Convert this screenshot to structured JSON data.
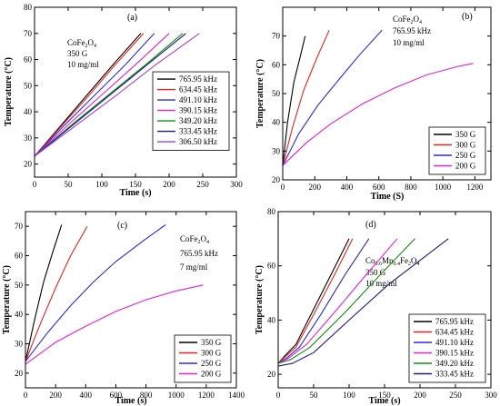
{
  "chart_data": [
    {
      "type": "line",
      "panel_label": "(a)",
      "annotations": [
        "CoFe₂O₄",
        "350 G",
        "10 mg/ml"
      ],
      "xlabel": "Time (s)",
      "ylabel": "Temperature (°C)",
      "xlim": [
        0,
        300
      ],
      "ylim": [
        15,
        80
      ],
      "xticks": [
        0,
        50,
        100,
        150,
        200,
        250,
        300
      ],
      "yticks": [
        20,
        30,
        40,
        50,
        60,
        70,
        80
      ],
      "grid": false,
      "legend_position": "center-right",
      "series": [
        {
          "name": "765.95 kHz",
          "color": "#000000",
          "points": [
            [
              0,
              23
            ],
            [
              40,
              35
            ],
            [
              80,
              47
            ],
            [
              120,
              59
            ],
            [
              158,
              70
            ]
          ]
        },
        {
          "name": "634.45 kHz",
          "color": "#e8241f",
          "points": [
            [
              0,
              23
            ],
            [
              40,
              34.5
            ],
            [
              80,
              46
            ],
            [
              120,
              58
            ],
            [
              162,
              70
            ]
          ]
        },
        {
          "name": "491.10 kHz",
          "color": "#2b2bd9",
          "points": [
            [
              0,
              23
            ],
            [
              45,
              35
            ],
            [
              90,
              46.5
            ],
            [
              135,
              58
            ],
            [
              178,
              70
            ]
          ]
        },
        {
          "name": "390.15 kHz",
          "color": "#e820d8",
          "points": [
            [
              0,
              23
            ],
            [
              50,
              35
            ],
            [
              100,
              46.5
            ],
            [
              150,
              58
            ],
            [
              200,
              70
            ]
          ]
        },
        {
          "name": "349.20 kHz",
          "color": "#138c13",
          "points": [
            [
              0,
              23
            ],
            [
              55,
              35
            ],
            [
              110,
              46.5
            ],
            [
              165,
              58
            ],
            [
              220,
              70
            ]
          ]
        },
        {
          "name": "333.45 kHz",
          "color": "#1c1c7a",
          "points": [
            [
              0,
              23
            ],
            [
              55,
              34.5
            ],
            [
              110,
              46
            ],
            [
              165,
              57.5
            ],
            [
              225,
              70
            ]
          ]
        },
        {
          "name": "306.50 kHz",
          "color": "#a040e0",
          "points": [
            [
              0,
              23
            ],
            [
              60,
              34.5
            ],
            [
              120,
              46
            ],
            [
              180,
              58
            ],
            [
              245,
              70
            ]
          ]
        }
      ]
    },
    {
      "type": "line",
      "panel_label": "(b)",
      "annotations": [
        "CoFe₂O₄",
        "765.95 kHz",
        "10 mg/ml"
      ],
      "xlabel": "Time (S)",
      "ylabel": "Temperature (°C)",
      "xlim": [
        0,
        1300
      ],
      "ylim": [
        20,
        80
      ],
      "xticks": [
        0,
        200,
        400,
        600,
        800,
        1000,
        1200
      ],
      "yticks": [
        20,
        30,
        40,
        50,
        60,
        70
      ],
      "grid": false,
      "legend_position": "bottom-right",
      "series": [
        {
          "name": "350 G",
          "color": "#000000",
          "points": [
            [
              0,
              25
            ],
            [
              30,
              40
            ],
            [
              70,
              54
            ],
            [
              110,
              63
            ],
            [
              140,
              70
            ]
          ]
        },
        {
          "name": "300 G",
          "color": "#e8241f",
          "points": [
            [
              0,
              25
            ],
            [
              60,
              38
            ],
            [
              130,
              51
            ],
            [
              210,
              62
            ],
            [
              290,
              72
            ]
          ]
        },
        {
          "name": "250 G",
          "color": "#2b2bd9",
          "points": [
            [
              0,
              25
            ],
            [
              100,
              36
            ],
            [
              220,
              46
            ],
            [
              360,
              55.5
            ],
            [
              480,
              63.5
            ],
            [
              620,
              72
            ]
          ]
        },
        {
          "name": "200 G",
          "color": "#e820d8",
          "points": [
            [
              0,
              25
            ],
            [
              150,
              33
            ],
            [
              300,
              39.5
            ],
            [
              500,
              46.5
            ],
            [
              700,
              52
            ],
            [
              900,
              56.5
            ],
            [
              1100,
              59.5
            ],
            [
              1190,
              60.5
            ]
          ]
        }
      ]
    },
    {
      "type": "line",
      "panel_label": "(c)",
      "annotations": [
        "CoFe₂O₄",
        "765.95 kHz",
        "7 mg/ml"
      ],
      "xlabel": "Time (s)",
      "ylabel": "Temperature (°C)",
      "xlim": [
        0,
        1400
      ],
      "ylim": [
        15,
        75
      ],
      "xticks": [
        0,
        200,
        400,
        600,
        800,
        1000,
        1200,
        1400
      ],
      "yticks": [
        20,
        30,
        40,
        50,
        60,
        70
      ],
      "grid": false,
      "legend_position": "bottom-right",
      "series": [
        {
          "name": "350 G",
          "color": "#000000",
          "points": [
            [
              0,
              24
            ],
            [
              60,
              38
            ],
            [
              120,
              51
            ],
            [
              180,
              61
            ],
            [
              240,
              70.5
            ]
          ]
        },
        {
          "name": "300 G",
          "color": "#e8241f",
          "points": [
            [
              0,
              24
            ],
            [
              100,
              37
            ],
            [
              200,
              49
            ],
            [
              300,
              60
            ],
            [
              410,
              70
            ]
          ]
        },
        {
          "name": "250 G",
          "color": "#2b2bd9",
          "points": [
            [
              0,
              24
            ],
            [
              150,
              34
            ],
            [
              300,
              43
            ],
            [
              450,
              51
            ],
            [
              600,
              58
            ],
            [
              780,
              65
            ],
            [
              930,
              70.5
            ]
          ]
        },
        {
          "name": "200 G",
          "color": "#e820d8",
          "points": [
            [
              0,
              23
            ],
            [
              200,
              30.5
            ],
            [
              400,
              36
            ],
            [
              600,
              41
            ],
            [
              800,
              45
            ],
            [
              1000,
              48
            ],
            [
              1180,
              50
            ]
          ]
        }
      ]
    },
    {
      "type": "line",
      "panel_label": "(d)",
      "annotations": [
        "Co₀.₆Mn₀.₄Fe₂O₄",
        "350 G",
        "10 mg/ml"
      ],
      "xlabel": "Time (s)",
      "ylabel": "Temperature (°C)",
      "xlim": [
        0,
        300
      ],
      "ylim": [
        15,
        80
      ],
      "xticks": [
        0,
        50,
        100,
        150,
        200,
        250,
        300
      ],
      "yticks": [
        20,
        40,
        60,
        80
      ],
      "grid": false,
      "legend_position": "bottom-right",
      "series": [
        {
          "name": "765.95 kHz",
          "color": "#000000",
          "points": [
            [
              0,
              24
            ],
            [
              10,
              27
            ],
            [
              25,
              31
            ],
            [
              50,
              44
            ],
            [
              75,
              57
            ],
            [
              100,
              70
            ]
          ]
        },
        {
          "name": "634.45 kHz",
          "color": "#e8241f",
          "points": [
            [
              0,
              24
            ],
            [
              10,
              26.5
            ],
            [
              25,
              30
            ],
            [
              50,
              42
            ],
            [
              80,
              57
            ],
            [
              105,
              70
            ]
          ]
        },
        {
          "name": "491.10 kHz",
          "color": "#2b2bd9",
          "points": [
            [
              0,
              24
            ],
            [
              12,
              26
            ],
            [
              30,
              30
            ],
            [
              60,
              42
            ],
            [
              95,
              57
            ],
            [
              128,
              70
            ]
          ]
        },
        {
          "name": "390.15 kHz",
          "color": "#e820d8",
          "points": [
            [
              0,
              24
            ],
            [
              15,
              26
            ],
            [
              40,
              31
            ],
            [
              80,
              43
            ],
            [
              125,
              57
            ],
            [
              168,
              70
            ]
          ]
        },
        {
          "name": "349.20 kHz",
          "color": "#138c13",
          "points": [
            [
              0,
              24
            ],
            [
              18,
              25.5
            ],
            [
              45,
              30
            ],
            [
              95,
              43
            ],
            [
              145,
              57
            ],
            [
              193,
              70
            ]
          ]
        },
        {
          "name": "333.45 kHz",
          "color": "#1c1c7a",
          "points": [
            [
              0,
              23
            ],
            [
              20,
              24
            ],
            [
              50,
              28
            ],
            [
              100,
              40
            ],
            [
              155,
              53
            ],
            [
              200,
              62
            ],
            [
              240,
              70
            ]
          ]
        }
      ]
    }
  ]
}
